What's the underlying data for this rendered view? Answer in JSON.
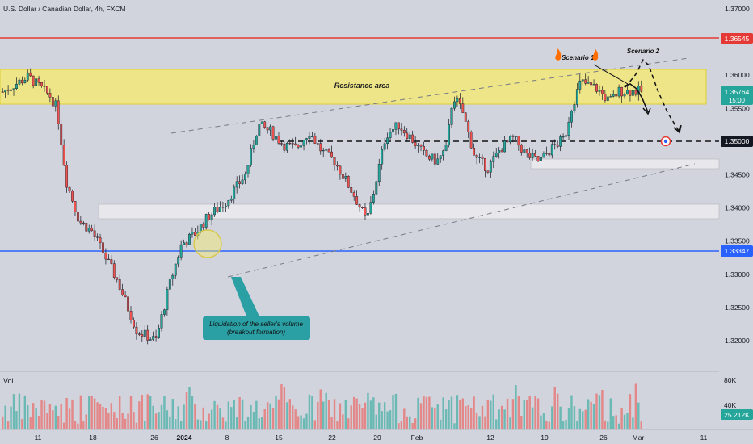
{
  "header": {
    "symbol_title": "U.S. Dollar / Canadian Dollar, 4h, FXCM"
  },
  "price_axis": {
    "ticks": [
      "1.37000",
      "1.36000",
      "1.35500",
      "1.35000",
      "1.34500",
      "1.34000",
      "1.33500",
      "1.33000",
      "1.32500",
      "1.32000"
    ],
    "tick_values": [
      1.37,
      1.36,
      1.355,
      1.35,
      1.345,
      1.34,
      1.335,
      1.33,
      1.325,
      1.32
    ],
    "labels": [
      {
        "value_text": "1.36545",
        "value": 1.36545,
        "color": "#e53935"
      },
      {
        "value_text": "1.35764",
        "sub": "15:00",
        "value": 1.35764,
        "color": "#26a69a"
      },
      {
        "value_text": "1.35000",
        "value": 1.35,
        "color": "#000000"
      },
      {
        "value_text": "1.33347",
        "value": 1.33347,
        "color": "#2962ff"
      }
    ]
  },
  "time_axis": {
    "labels": [
      "11",
      "18",
      "26",
      "2024",
      "8",
      "15",
      "22",
      "29",
      "Feb",
      "12",
      "19",
      "26",
      "Mar",
      "11"
    ]
  },
  "annotations": {
    "resistance_label": "Resistance area",
    "scenario1_label": "Scenario 1",
    "scenario2_label": "Scenario 2",
    "callout_line1": "Liquidation of the seller's volume",
    "callout_line2": "(breakout formation)"
  },
  "volume": {
    "label": "Vol",
    "axis_ticks": [
      "80K",
      "40K"
    ],
    "current_value": "25.212K",
    "current_color": "#26a69a"
  },
  "colors": {
    "up": "#26a69a",
    "down": "#ef5350",
    "resistance_fill": "#f5eb6b",
    "support_fill": "#e8e8ec",
    "callout": "#2aa0a5",
    "red_line": "#e53935",
    "blue_line": "#2962ff"
  },
  "chart_data": {
    "type": "candlestick",
    "symbol": "U.S. Dollar / Canadian Dollar",
    "timeframe": "4h",
    "y_range": [
      1.3175,
      1.3715
    ],
    "horizontal_lines": [
      1.36545,
      1.35,
      1.33347
    ],
    "zones": {
      "resistance": [
        1.3555,
        1.3607
      ],
      "support_1": [
        1.3459,
        1.3466
      ],
      "support_2": [
        1.3382,
        1.3403
      ]
    },
    "price_path": [
      [
        0,
        1.3575
      ],
      [
        0.04,
        1.3598
      ],
      [
        0.075,
        1.3568
      ],
      [
        0.085,
        1.355
      ],
      [
        0.1,
        1.344
      ],
      [
        0.12,
        1.338
      ],
      [
        0.14,
        1.3365
      ],
      [
        0.18,
        1.329
      ],
      [
        0.21,
        1.3215
      ],
      [
        0.24,
        1.32
      ],
      [
        0.26,
        1.328
      ],
      [
        0.28,
        1.3345
      ],
      [
        0.3,
        1.336
      ],
      [
        0.32,
        1.3385
      ],
      [
        0.35,
        1.341
      ],
      [
        0.38,
        1.345
      ],
      [
        0.4,
        1.3525
      ],
      [
        0.42,
        1.3515
      ],
      [
        0.44,
        1.3495
      ],
      [
        0.46,
        1.349
      ],
      [
        0.48,
        1.3515
      ],
      [
        0.5,
        1.3485
      ],
      [
        0.52,
        1.347
      ],
      [
        0.55,
        1.342
      ],
      [
        0.57,
        1.338
      ],
      [
        0.58,
        1.342
      ],
      [
        0.6,
        1.351
      ],
      [
        0.62,
        1.3525
      ],
      [
        0.64,
        1.3505
      ],
      [
        0.66,
        1.348
      ],
      [
        0.68,
        1.347
      ],
      [
        0.695,
        1.349
      ],
      [
        0.705,
        1.357
      ],
      [
        0.72,
        1.3545
      ],
      [
        0.74,
        1.3475
      ],
      [
        0.76,
        1.346
      ],
      [
        0.78,
        1.349
      ],
      [
        0.8,
        1.3505
      ],
      [
        0.82,
        1.348
      ],
      [
        0.84,
        1.347
      ],
      [
        0.86,
        1.349
      ],
      [
        0.88,
        1.3505
      ],
      [
        0.89,
        1.355
      ],
      [
        0.905,
        1.359
      ],
      [
        0.93,
        1.358
      ],
      [
        0.95,
        1.356
      ],
      [
        0.965,
        1.3576
      ]
    ]
  }
}
